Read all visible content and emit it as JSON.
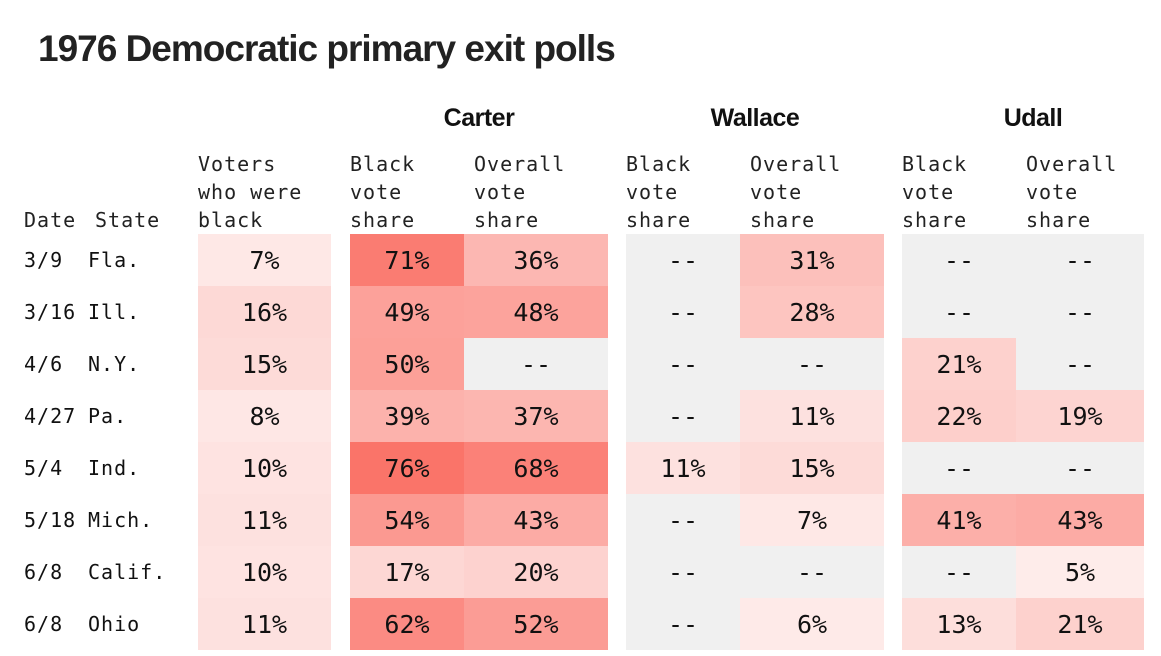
{
  "title": "1976 Democratic primary exit polls",
  "header": {
    "groups": [
      "Carter",
      "Wallace",
      "Udall"
    ],
    "date_label": "Date",
    "state_label": "State",
    "columns": [
      [
        "Voters",
        "who were",
        "black"
      ],
      [
        "Black",
        "vote",
        "share"
      ],
      [
        "Overall",
        "vote",
        "share"
      ],
      [
        "Black",
        "vote",
        "share"
      ],
      [
        "Overall",
        "vote",
        "share"
      ],
      [
        "Black",
        "vote",
        "share"
      ],
      [
        "Overall",
        "vote",
        "share"
      ]
    ]
  },
  "colors": {
    "empty": "#f0f0f0",
    "scale_low": "#fef4f3",
    "scale_high": "#fa6d62",
    "text": "#111111"
  },
  "chart_data": {
    "type": "table",
    "title": "1976 Democratic primary exit polls",
    "column_groups": [
      {
        "name": "",
        "columns": [
          "Voters who were black"
        ]
      },
      {
        "name": "Carter",
        "columns": [
          "Black vote share",
          "Overall vote share"
        ]
      },
      {
        "name": "Wallace",
        "columns": [
          "Black vote share",
          "Overall vote share"
        ]
      },
      {
        "name": "Udall",
        "columns": [
          "Black vote share",
          "Overall vote share"
        ]
      }
    ],
    "rows": [
      {
        "date": "3/9",
        "state": "Fla.",
        "values": [
          7,
          71,
          36,
          null,
          31,
          null,
          null
        ]
      },
      {
        "date": "3/16",
        "state": "Ill.",
        "values": [
          16,
          49,
          48,
          null,
          28,
          null,
          null
        ]
      },
      {
        "date": "4/6",
        "state": "N.Y.",
        "values": [
          15,
          50,
          null,
          null,
          null,
          21,
          null
        ]
      },
      {
        "date": "4/27",
        "state": "Pa.",
        "values": [
          8,
          39,
          37,
          null,
          11,
          22,
          19
        ]
      },
      {
        "date": "5/4",
        "state": "Ind.",
        "values": [
          10,
          76,
          68,
          11,
          15,
          null,
          null
        ]
      },
      {
        "date": "5/18",
        "state": "Mich.",
        "values": [
          11,
          54,
          43,
          null,
          7,
          41,
          43
        ]
      },
      {
        "date": "6/8",
        "state": "Calif.",
        "values": [
          10,
          17,
          20,
          null,
          null,
          null,
          5
        ]
      },
      {
        "date": "6/8",
        "state": "Ohio",
        "values": [
          11,
          62,
          52,
          null,
          6,
          13,
          21
        ]
      }
    ],
    "unit_suffix": "%",
    "missing_label": "--"
  }
}
